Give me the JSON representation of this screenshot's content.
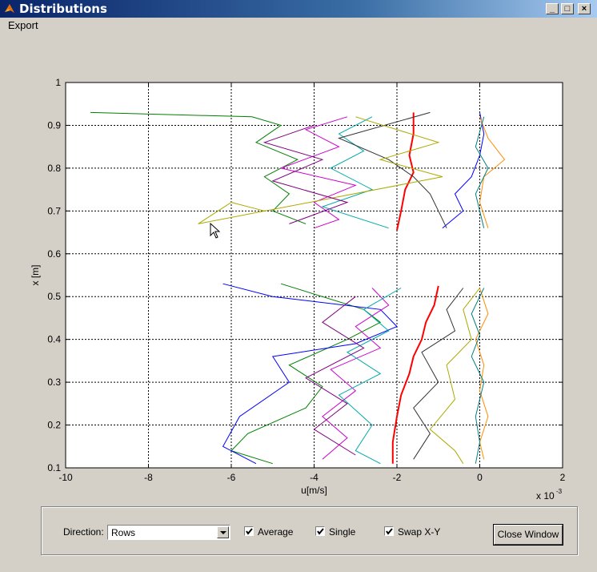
{
  "window": {
    "title": "Distributions",
    "minimize": "_",
    "maximize": "□",
    "close": "×"
  },
  "menu": {
    "export": "Export"
  },
  "chart_data": {
    "type": "line",
    "xlabel": "u[m/s]",
    "ylabel": "x [m]",
    "x_multiplier": "x 10",
    "x_multiplier_exp": "-3",
    "xlim": [
      -10,
      2
    ],
    "ylim": [
      0.1,
      1
    ],
    "xticks": [
      "-10",
      "-8",
      "-6",
      "-4",
      "-2",
      "0",
      "2"
    ],
    "yticks": [
      "0.1",
      "0.2",
      "0.3",
      "0.4",
      "0.5",
      "0.6",
      "0.7",
      "0.8",
      "0.9",
      "1"
    ],
    "grid": true,
    "series": [
      {
        "color": "#ff0000",
        "width": 2,
        "upper": [
          [
            -1.6,
            0.93
          ],
          [
            -1.6,
            0.88
          ],
          [
            -1.7,
            0.83
          ],
          [
            -1.6,
            0.79
          ],
          [
            -1.8,
            0.75
          ],
          [
            -1.9,
            0.7
          ],
          [
            -2.0,
            0.655
          ]
        ],
        "lower": [
          [
            -1.0,
            0.525
          ],
          [
            -1.1,
            0.48
          ],
          [
            -1.3,
            0.44
          ],
          [
            -1.4,
            0.4
          ],
          [
            -1.6,
            0.36
          ],
          [
            -1.7,
            0.32
          ],
          [
            -1.9,
            0.27
          ],
          [
            -2.0,
            0.22
          ],
          [
            -2.1,
            0.16
          ],
          [
            -2.1,
            0.11
          ]
        ]
      },
      {
        "color": "#008000",
        "upper": [
          [
            -9.4,
            0.93
          ],
          [
            -5.5,
            0.92
          ],
          [
            -4.8,
            0.9
          ],
          [
            -5.4,
            0.86
          ],
          [
            -4.4,
            0.82
          ],
          [
            -5.2,
            0.78
          ],
          [
            -4.6,
            0.74
          ],
          [
            -5.0,
            0.7
          ],
          [
            -4.2,
            0.67
          ]
        ],
        "lower": [
          [
            -4.8,
            0.53
          ],
          [
            -2.8,
            0.47
          ],
          [
            -2.4,
            0.44
          ],
          [
            -3.2,
            0.4
          ],
          [
            -4.6,
            0.34
          ],
          [
            -3.8,
            0.29
          ],
          [
            -4.2,
            0.24
          ],
          [
            -5.6,
            0.18
          ],
          [
            -6.0,
            0.14
          ],
          [
            -5.0,
            0.11
          ]
        ]
      },
      {
        "color": "#0000ff",
        "upper": [
          [
            0.0,
            0.93
          ],
          [
            0.1,
            0.88
          ],
          [
            0.0,
            0.83
          ],
          [
            -0.2,
            0.78
          ],
          [
            -0.6,
            0.74
          ],
          [
            -0.4,
            0.7
          ],
          [
            -0.9,
            0.66
          ]
        ],
        "lower": [
          [
            -6.2,
            0.53
          ],
          [
            -5.0,
            0.5
          ],
          [
            -2.4,
            0.47
          ],
          [
            -2.0,
            0.43
          ],
          [
            -3.0,
            0.39
          ],
          [
            -5.0,
            0.36
          ],
          [
            -4.6,
            0.3
          ],
          [
            -5.8,
            0.22
          ],
          [
            -6.2,
            0.15
          ],
          [
            -5.4,
            0.11
          ]
        ]
      },
      {
        "color": "#cc00cc",
        "upper": [
          [
            -3.2,
            0.92
          ],
          [
            -4.2,
            0.89
          ],
          [
            -3.4,
            0.85
          ],
          [
            -4.8,
            0.8
          ],
          [
            -3.0,
            0.76
          ],
          [
            -4.0,
            0.72
          ],
          [
            -3.4,
            0.68
          ],
          [
            -4.0,
            0.66
          ]
        ],
        "lower": [
          [
            -2.6,
            0.52
          ],
          [
            -2.2,
            0.48
          ],
          [
            -3.0,
            0.43
          ],
          [
            -2.4,
            0.38
          ],
          [
            -3.6,
            0.33
          ],
          [
            -3.0,
            0.28
          ],
          [
            -3.8,
            0.22
          ],
          [
            -3.2,
            0.17
          ],
          [
            -3.8,
            0.12
          ]
        ]
      },
      {
        "color": "#00aaaa",
        "upper": [
          [
            -2.6,
            0.92
          ],
          [
            -3.4,
            0.88
          ],
          [
            -2.8,
            0.84
          ],
          [
            -3.6,
            0.8
          ],
          [
            -2.6,
            0.75
          ],
          [
            -3.8,
            0.71
          ],
          [
            -2.2,
            0.66
          ]
        ],
        "lower": [
          [
            -1.9,
            0.52
          ],
          [
            -2.8,
            0.47
          ],
          [
            -2.2,
            0.42
          ],
          [
            -3.2,
            0.37
          ],
          [
            -2.4,
            0.32
          ],
          [
            -3.4,
            0.27
          ],
          [
            -2.6,
            0.2
          ],
          [
            -3.0,
            0.14
          ],
          [
            -2.4,
            0.11
          ]
        ]
      },
      {
        "color": "#333333",
        "upper": [
          [
            -1.2,
            0.93
          ],
          [
            -3.4,
            0.87
          ],
          [
            -2.2,
            0.82
          ],
          [
            -1.6,
            0.78
          ],
          [
            -1.2,
            0.74
          ],
          [
            -1.0,
            0.7
          ],
          [
            -0.8,
            0.66
          ]
        ],
        "lower": [
          [
            -0.4,
            0.52
          ],
          [
            -0.8,
            0.47
          ],
          [
            -0.6,
            0.42
          ],
          [
            -1.4,
            0.37
          ],
          [
            -1.0,
            0.3
          ],
          [
            -1.6,
            0.24
          ],
          [
            -1.2,
            0.18
          ],
          [
            -1.6,
            0.12
          ]
        ]
      },
      {
        "color": "#aaaa00",
        "upper": [
          [
            -3.0,
            0.92
          ],
          [
            -1.0,
            0.86
          ],
          [
            -2.4,
            0.82
          ],
          [
            -0.9,
            0.78
          ],
          [
            -6.8,
            0.67
          ],
          [
            -6.0,
            0.72
          ],
          [
            -5.2,
            0.7
          ]
        ],
        "lower": [
          [
            0.0,
            0.52
          ],
          [
            -0.4,
            0.47
          ],
          [
            -0.2,
            0.4
          ],
          [
            -0.8,
            0.34
          ],
          [
            -0.6,
            0.26
          ],
          [
            -1.2,
            0.19
          ],
          [
            -0.6,
            0.14
          ],
          [
            -0.4,
            0.11
          ]
        ]
      },
      {
        "color": "#ff8c00",
        "upper": [
          [
            0.0,
            0.92
          ],
          [
            0.2,
            0.87
          ],
          [
            0.6,
            0.82
          ],
          [
            0.1,
            0.78
          ],
          [
            0.0,
            0.72
          ],
          [
            0.2,
            0.66
          ]
        ],
        "lower": [
          [
            0.0,
            0.52
          ],
          [
            0.2,
            0.46
          ],
          [
            -0.1,
            0.4
          ],
          [
            0.1,
            0.34
          ],
          [
            0.0,
            0.28
          ],
          [
            0.2,
            0.22
          ],
          [
            0.0,
            0.16
          ],
          [
            0.1,
            0.12
          ]
        ]
      },
      {
        "color": "#008080",
        "upper": [
          [
            0.1,
            0.92
          ],
          [
            -0.1,
            0.85
          ],
          [
            0.2,
            0.8
          ],
          [
            -0.1,
            0.74
          ],
          [
            0.1,
            0.66
          ]
        ],
        "lower": [
          [
            0.1,
            0.52
          ],
          [
            -0.2,
            0.46
          ],
          [
            0.0,
            0.41
          ],
          [
            -0.2,
            0.36
          ],
          [
            0.1,
            0.3
          ],
          [
            -0.1,
            0.22
          ],
          [
            0.0,
            0.16
          ],
          [
            -0.1,
            0.11
          ]
        ]
      },
      {
        "color": "#800080",
        "upper": [
          [
            -4.0,
            0.9
          ],
          [
            -5.2,
            0.86
          ],
          [
            -3.8,
            0.82
          ],
          [
            -5.0,
            0.77
          ],
          [
            -3.2,
            0.72
          ],
          [
            -4.6,
            0.67
          ]
        ],
        "lower": [
          [
            -3.0,
            0.5
          ],
          [
            -3.8,
            0.44
          ],
          [
            -2.8,
            0.38
          ],
          [
            -4.2,
            0.31
          ],
          [
            -3.2,
            0.25
          ],
          [
            -4.0,
            0.19
          ],
          [
            -3.0,
            0.13
          ]
        ]
      }
    ]
  },
  "controls": {
    "direction_label": "Direction:",
    "direction_value": "Rows",
    "average_label": "Average",
    "single_label": "Single",
    "swapxy_label": "Swap X-Y",
    "average_checked": true,
    "single_checked": true,
    "swapxy_checked": true,
    "close_button": "Close Window"
  }
}
